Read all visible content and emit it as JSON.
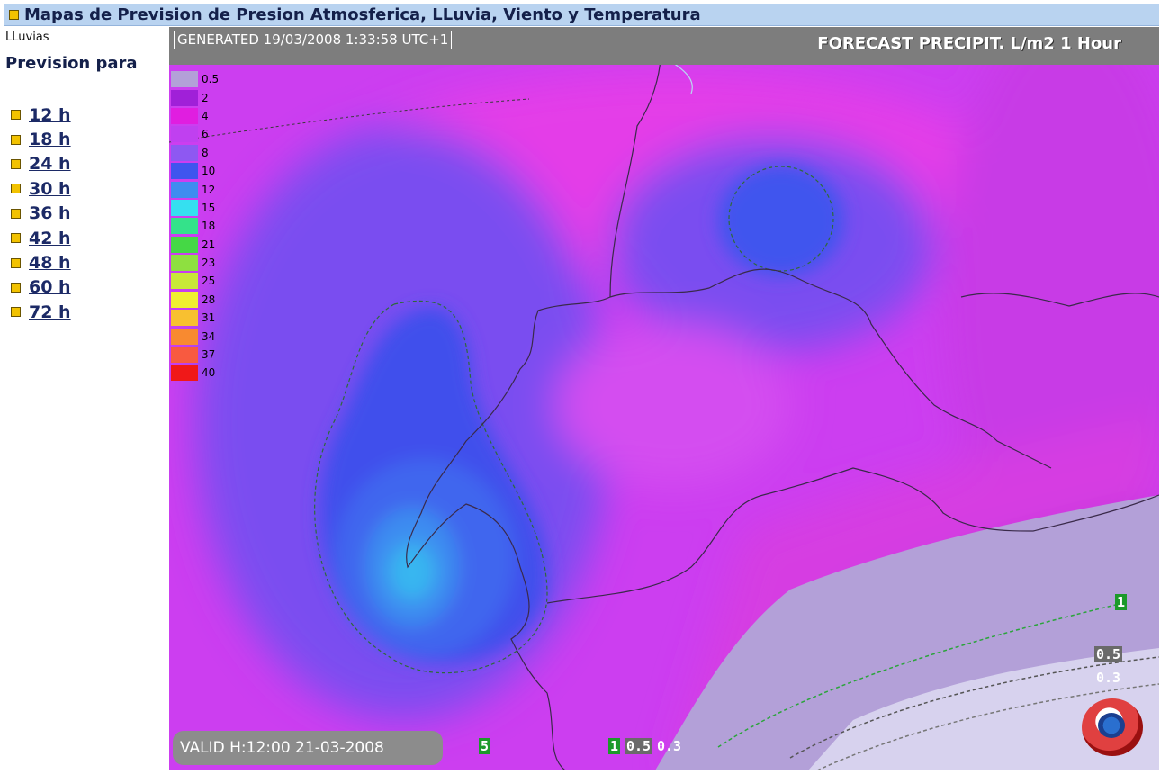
{
  "header": {
    "title": "Mapas de Prevision de Presion Atmosferica, LLuvia, Viento y Temperatura"
  },
  "sidebar": {
    "category": "LLuvias",
    "heading": "Prevision para",
    "items": [
      {
        "label": "12 h"
      },
      {
        "label": "18 h"
      },
      {
        "label": "24 h"
      },
      {
        "label": "30 h"
      },
      {
        "label": "36 h"
      },
      {
        "label": "42 h"
      },
      {
        "label": "48 h"
      },
      {
        "label": "60 h"
      },
      {
        "label": "72 h"
      }
    ]
  },
  "map": {
    "generated": "GENERATED 19/03/2008 1:33:58 UTC+1",
    "forecast": "FORECAST  PRECIPIT. L/m2  1 Hour",
    "valid": "VALID H:12:00  21-03-2008",
    "legend": [
      {
        "label": "0.5",
        "color": "#b3a0d8"
      },
      {
        "label": "2",
        "color": "#a020d8"
      },
      {
        "label": "4",
        "color": "#e01ee0"
      },
      {
        "label": "6",
        "color": "#c040f0"
      },
      {
        "label": "8",
        "color": "#8e58f2"
      },
      {
        "label": "10",
        "color": "#3f55ee"
      },
      {
        "label": "12",
        "color": "#3e8cf0"
      },
      {
        "label": "15",
        "color": "#35e0f0"
      },
      {
        "label": "18",
        "color": "#34e28a"
      },
      {
        "label": "21",
        "color": "#45d845"
      },
      {
        "label": "23",
        "color": "#8ee040"
      },
      {
        "label": "25",
        "color": "#c8e838"
      },
      {
        "label": "28",
        "color": "#f0f030"
      },
      {
        "label": "31",
        "color": "#f8c030"
      },
      {
        "label": "34",
        "color": "#f88a30"
      },
      {
        "label": "37",
        "color": "#f85a40"
      },
      {
        "label": "40",
        "color": "#f01818"
      }
    ],
    "contour_labels": {
      "right_1": "1",
      "right_05": "0.5",
      "right_03": "0.3",
      "bottom_5": "5",
      "bottom_1": "1",
      "bottom_05": "0.5",
      "bottom_03": "0.3"
    }
  }
}
